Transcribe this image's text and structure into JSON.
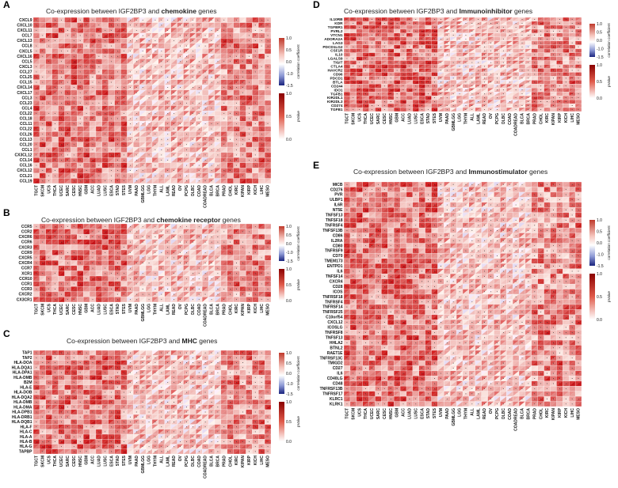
{
  "chart_data": [
    {
      "type": "heatmap",
      "panel_label": "A",
      "title_prefix": "Co-expression between IGF2BP3 and ",
      "title_highlight": "chemokine",
      "title_suffix": " genes",
      "rows": [
        "CXCL9",
        "CXCL10",
        "CXCL11",
        "CCL7",
        "CXCL13",
        "CCL8",
        "CXCL5",
        "CXCL16",
        "CCL5",
        "CXCL3",
        "CCL27",
        "CCL25",
        "CCL15",
        "CXCL14",
        "CXCL17",
        "CCL3",
        "CCL23",
        "CCL4",
        "CCL22",
        "CCL18",
        "CCL11",
        "CCL22",
        "CCL26",
        "CCL13",
        "CCL20",
        "CCL1",
        "CX3CL12",
        "CCL14",
        "CCL16",
        "CXCL12",
        "CCL21",
        "CCL19"
      ],
      "columns": [
        "TGCT",
        "SKCM",
        "UCS",
        "THCA",
        "UCEC",
        "SARC",
        "CESC",
        "HNSC",
        "GBM",
        "ACC",
        "LUAD",
        "LUSC",
        "ESCA",
        "STAD",
        "STES",
        "UVM",
        "PAAD",
        "GBMLGG",
        "LGG",
        "THYM",
        "ALL",
        "LAML",
        "READ",
        "OV",
        "PCPG",
        "DLBC",
        "COAD",
        "COADREAD",
        "BLCA",
        "BRCA",
        "PRAD",
        "CHOL",
        "KIRC",
        "KIPAN",
        "KIRP",
        "KICH",
        "LIHC",
        "MESO"
      ],
      "legend": {
        "correlation_title": "correlation coefficient",
        "correlation_ticks": [
          "1.0",
          "0.5",
          "0.0",
          "-1.0",
          "-1.5"
        ],
        "pvalue_title": "pValue",
        "pvalue_ticks": [
          "1.0",
          "0.5",
          "0.0"
        ]
      }
    },
    {
      "type": "heatmap",
      "panel_label": "B",
      "title_prefix": "Co-expression between IGF2BP3 and ",
      "title_highlight": "chemokine receptor",
      "title_suffix": " genes",
      "rows": [
        "CCR5",
        "CCR2",
        "CXCR6",
        "CCR6",
        "CXCR3",
        "CCR9",
        "CXCR5",
        "CXCR4",
        "CCR7",
        "XCR1",
        "CCR10",
        "CCR1",
        "CCR3",
        "CXCR2",
        "CX3CR1"
      ],
      "columns": [
        "TGCT",
        "SKCM",
        "UCS",
        "THCA",
        "UCEC",
        "SARC",
        "CESC",
        "HNSC",
        "GBM",
        "ACC",
        "LUAD",
        "LUSC",
        "ESCA",
        "STAD",
        "STES",
        "UVM",
        "PAAD",
        "GBMLGG",
        "LGG",
        "THYM",
        "ALL",
        "LAML",
        "READ",
        "OV",
        "PCPG",
        "DLBC",
        "COAD",
        "COADREAD",
        "BLCA",
        "BRCA",
        "PRAD",
        "CHOL",
        "KIRC",
        "KIPAN",
        "KIRP",
        "KICH",
        "LIHC",
        "MESO"
      ],
      "legend": {
        "correlation_title": "correlation coefficient",
        "correlation_ticks": [
          "1.0",
          "0.5",
          "0.0",
          "-1.0",
          "-1.5"
        ],
        "pvalue_title": "pValue",
        "pvalue_ticks": [
          "1.0",
          "0.5",
          "0.0"
        ]
      }
    },
    {
      "type": "heatmap",
      "panel_label": "C",
      "title_prefix": "Co-expression between IGF2BP3 and ",
      "title_highlight": "MHC",
      "title_suffix": " genes",
      "rows": [
        "TAP1",
        "TAP2",
        "HLA-DOA",
        "HLA-DQA1",
        "HLA-DPA1",
        "HLA-DMB",
        "B2M",
        "HLA-E",
        "HLA-DOB",
        "HLA-DQA2",
        "HLA-DMB",
        "HLA-DMA",
        "HLA-DPB1",
        "HLA-DRB1",
        "HLA-DQB1",
        "HLA-F",
        "HLA-C",
        "HLA-A",
        "HLA-B",
        "HLA-G",
        "TAPBP"
      ],
      "columns": [
        "TGCT",
        "SKCM",
        "UCS",
        "THCA",
        "UCEC",
        "SARC",
        "CESC",
        "HNSC",
        "GBM",
        "ACC",
        "LUAD",
        "LUSC",
        "ESCA",
        "STAD",
        "STES",
        "UVM",
        "PAAD",
        "GBMLGG",
        "LGG",
        "THYM",
        "ALL",
        "LAML",
        "READ",
        "OV",
        "PCPG",
        "DLBC",
        "COAD",
        "COADREAD",
        "BLCA",
        "BRCA",
        "PRAD",
        "CHOL",
        "KIRC",
        "KIPAN",
        "KIRP",
        "KICH",
        "LIHC",
        "MESO"
      ],
      "legend": {
        "correlation_title": "correlation coefficient",
        "correlation_ticks": [
          "1.0",
          "0.5",
          "0.0",
          "-1.0",
          "-1.5"
        ],
        "pvalue_title": "pValue",
        "pvalue_ticks": [
          "1.0",
          "0.5",
          "0.0"
        ]
      }
    },
    {
      "type": "heatmap",
      "panel_label": "D",
      "title_prefix": "Co-expression between IGF2BP3 and ",
      "title_highlight": "Immunoinhibitor",
      "title_suffix": " genes",
      "rows": [
        "IL10RB",
        "KDR",
        "TGFBR1",
        "PVRL2",
        "VTCN1",
        "ADORA2A",
        "LAG3",
        "PDCD1LG2",
        "CSF1R",
        "IL10",
        "LGALS9",
        "TIGIT",
        "CTLA4",
        "HAVCR2",
        "CD96",
        "PDCD1",
        "BTLA",
        "CD244",
        "IDO1",
        "TGFB1",
        "KIR2DL1",
        "KIR2DL3",
        "CD274",
        "TGFB1"
      ],
      "columns": [
        "TGCT",
        "SKCM",
        "UCS",
        "THCA",
        "UCEC",
        "SARC",
        "CESC",
        "HNSC",
        "GBM",
        "ACC",
        "LUAD",
        "LUSC",
        "ESCA",
        "STAD",
        "STES",
        "UVM",
        "PAAD",
        "GBMLGG",
        "LGG",
        "THYM",
        "ALL",
        "LAML",
        "READ",
        "OV",
        "PCPG",
        "DLBC",
        "COAD",
        "COADREAD",
        "BLCA",
        "BRCA",
        "PRAD",
        "CHOL",
        "KIRC",
        "KIPAN",
        "KIRP",
        "KICH",
        "LIHC",
        "MESO"
      ],
      "legend": {
        "correlation_title": "correlation coefficient",
        "correlation_ticks": [
          "1.0",
          "0.5",
          "0.0",
          "-1.0",
          "-1.5"
        ],
        "pvalue_title": "pValue",
        "pvalue_ticks": [
          "1.0",
          "0.5",
          "0.0"
        ]
      }
    },
    {
      "type": "heatmap",
      "panel_label": "E",
      "title_prefix": "Co-expression between IGF2BP3 and ",
      "title_highlight": "Immunostimulator",
      "title_suffix": " genes",
      "rows": [
        "MICB",
        "CD276",
        "PVR",
        "ULBP1",
        "IL6R",
        "NT5E",
        "TNFSF13",
        "TNFSF18",
        "TNFRSF4",
        "TNFSF13B",
        "CD86",
        "IL2RA",
        "CD80",
        "TNFRSF9",
        "CD70",
        "TMEM173",
        "ENTPD1",
        "IL6",
        "TNFSF14",
        "CXCR4",
        "CD28",
        "ICOS",
        "TNFRSF18",
        "TNFRSF4",
        "TNFRSF14",
        "TNFRSF25",
        "C10orf54",
        "CXCL12",
        "ICOSLG",
        "TNFRSF8",
        "TNFSF13",
        "HHLA2",
        "BTNL2",
        "RAET1E",
        "TNFRSF13C",
        "TMIGD2",
        "CD27",
        "IL6",
        "CD40LG",
        "CD48",
        "TNFRSF13B",
        "TNFRSF17",
        "KLRC1",
        "KLRK1"
      ],
      "columns": [
        "TGCT",
        "SKCM",
        "UCS",
        "THCA",
        "UCEC",
        "SARC",
        "CESC",
        "HNSC",
        "GBM",
        "ACC",
        "LUAD",
        "LUSC",
        "ESCA",
        "STAD",
        "STES",
        "UVM",
        "PAAD",
        "GBMLGG",
        "LGG",
        "THYM",
        "ALL",
        "LAML",
        "READ",
        "OV",
        "PCPG",
        "DLBC",
        "COAD",
        "COADREAD",
        "BLCA",
        "BRCA",
        "PRAD",
        "CHOL",
        "KIRC",
        "KIPAN",
        "KIRP",
        "KICH",
        "LIHC",
        "MESO"
      ],
      "legend": {
        "correlation_title": "correlation coefficient",
        "correlation_ticks": [
          "1.0",
          "0.5",
          "0.0",
          "-1.0",
          "-1.5"
        ],
        "pvalue_title": "pValue",
        "pvalue_ticks": [
          "1.0",
          "0.5",
          "0.0"
        ]
      }
    }
  ]
}
